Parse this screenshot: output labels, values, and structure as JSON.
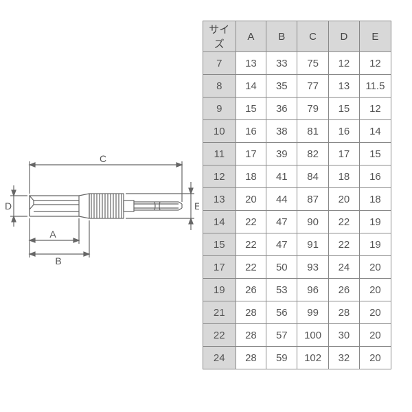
{
  "diagram": {
    "labels": {
      "A": "A",
      "B": "B",
      "C": "C",
      "D": "D",
      "E": "E"
    },
    "stroke_color": "#666666",
    "stroke_width": 1.2,
    "label_fontsize": 14,
    "label_color": "#555555"
  },
  "table": {
    "columns": [
      "サイズ",
      "A",
      "B",
      "C",
      "D",
      "E"
    ],
    "rows": [
      [
        "7",
        "13",
        "33",
        "75",
        "12",
        "12"
      ],
      [
        "8",
        "14",
        "35",
        "77",
        "13",
        "11.5"
      ],
      [
        "9",
        "15",
        "36",
        "79",
        "15",
        "12"
      ],
      [
        "10",
        "16",
        "38",
        "81",
        "16",
        "14"
      ],
      [
        "11",
        "17",
        "39",
        "82",
        "17",
        "15"
      ],
      [
        "12",
        "18",
        "41",
        "84",
        "18",
        "16"
      ],
      [
        "13",
        "20",
        "44",
        "87",
        "20",
        "18"
      ],
      [
        "14",
        "22",
        "47",
        "90",
        "22",
        "19"
      ],
      [
        "15",
        "22",
        "47",
        "91",
        "22",
        "19"
      ],
      [
        "17",
        "22",
        "50",
        "93",
        "24",
        "20"
      ],
      [
        "19",
        "26",
        "53",
        "96",
        "26",
        "20"
      ],
      [
        "21",
        "28",
        "56",
        "99",
        "28",
        "20"
      ],
      [
        "22",
        "28",
        "57",
        "100",
        "30",
        "20"
      ],
      [
        "24",
        "28",
        "59",
        "102",
        "32",
        "20"
      ]
    ],
    "header_bg": "#d8d8d8",
    "cell_border": "#888888",
    "text_color": "#555555",
    "fontsize": 15
  }
}
